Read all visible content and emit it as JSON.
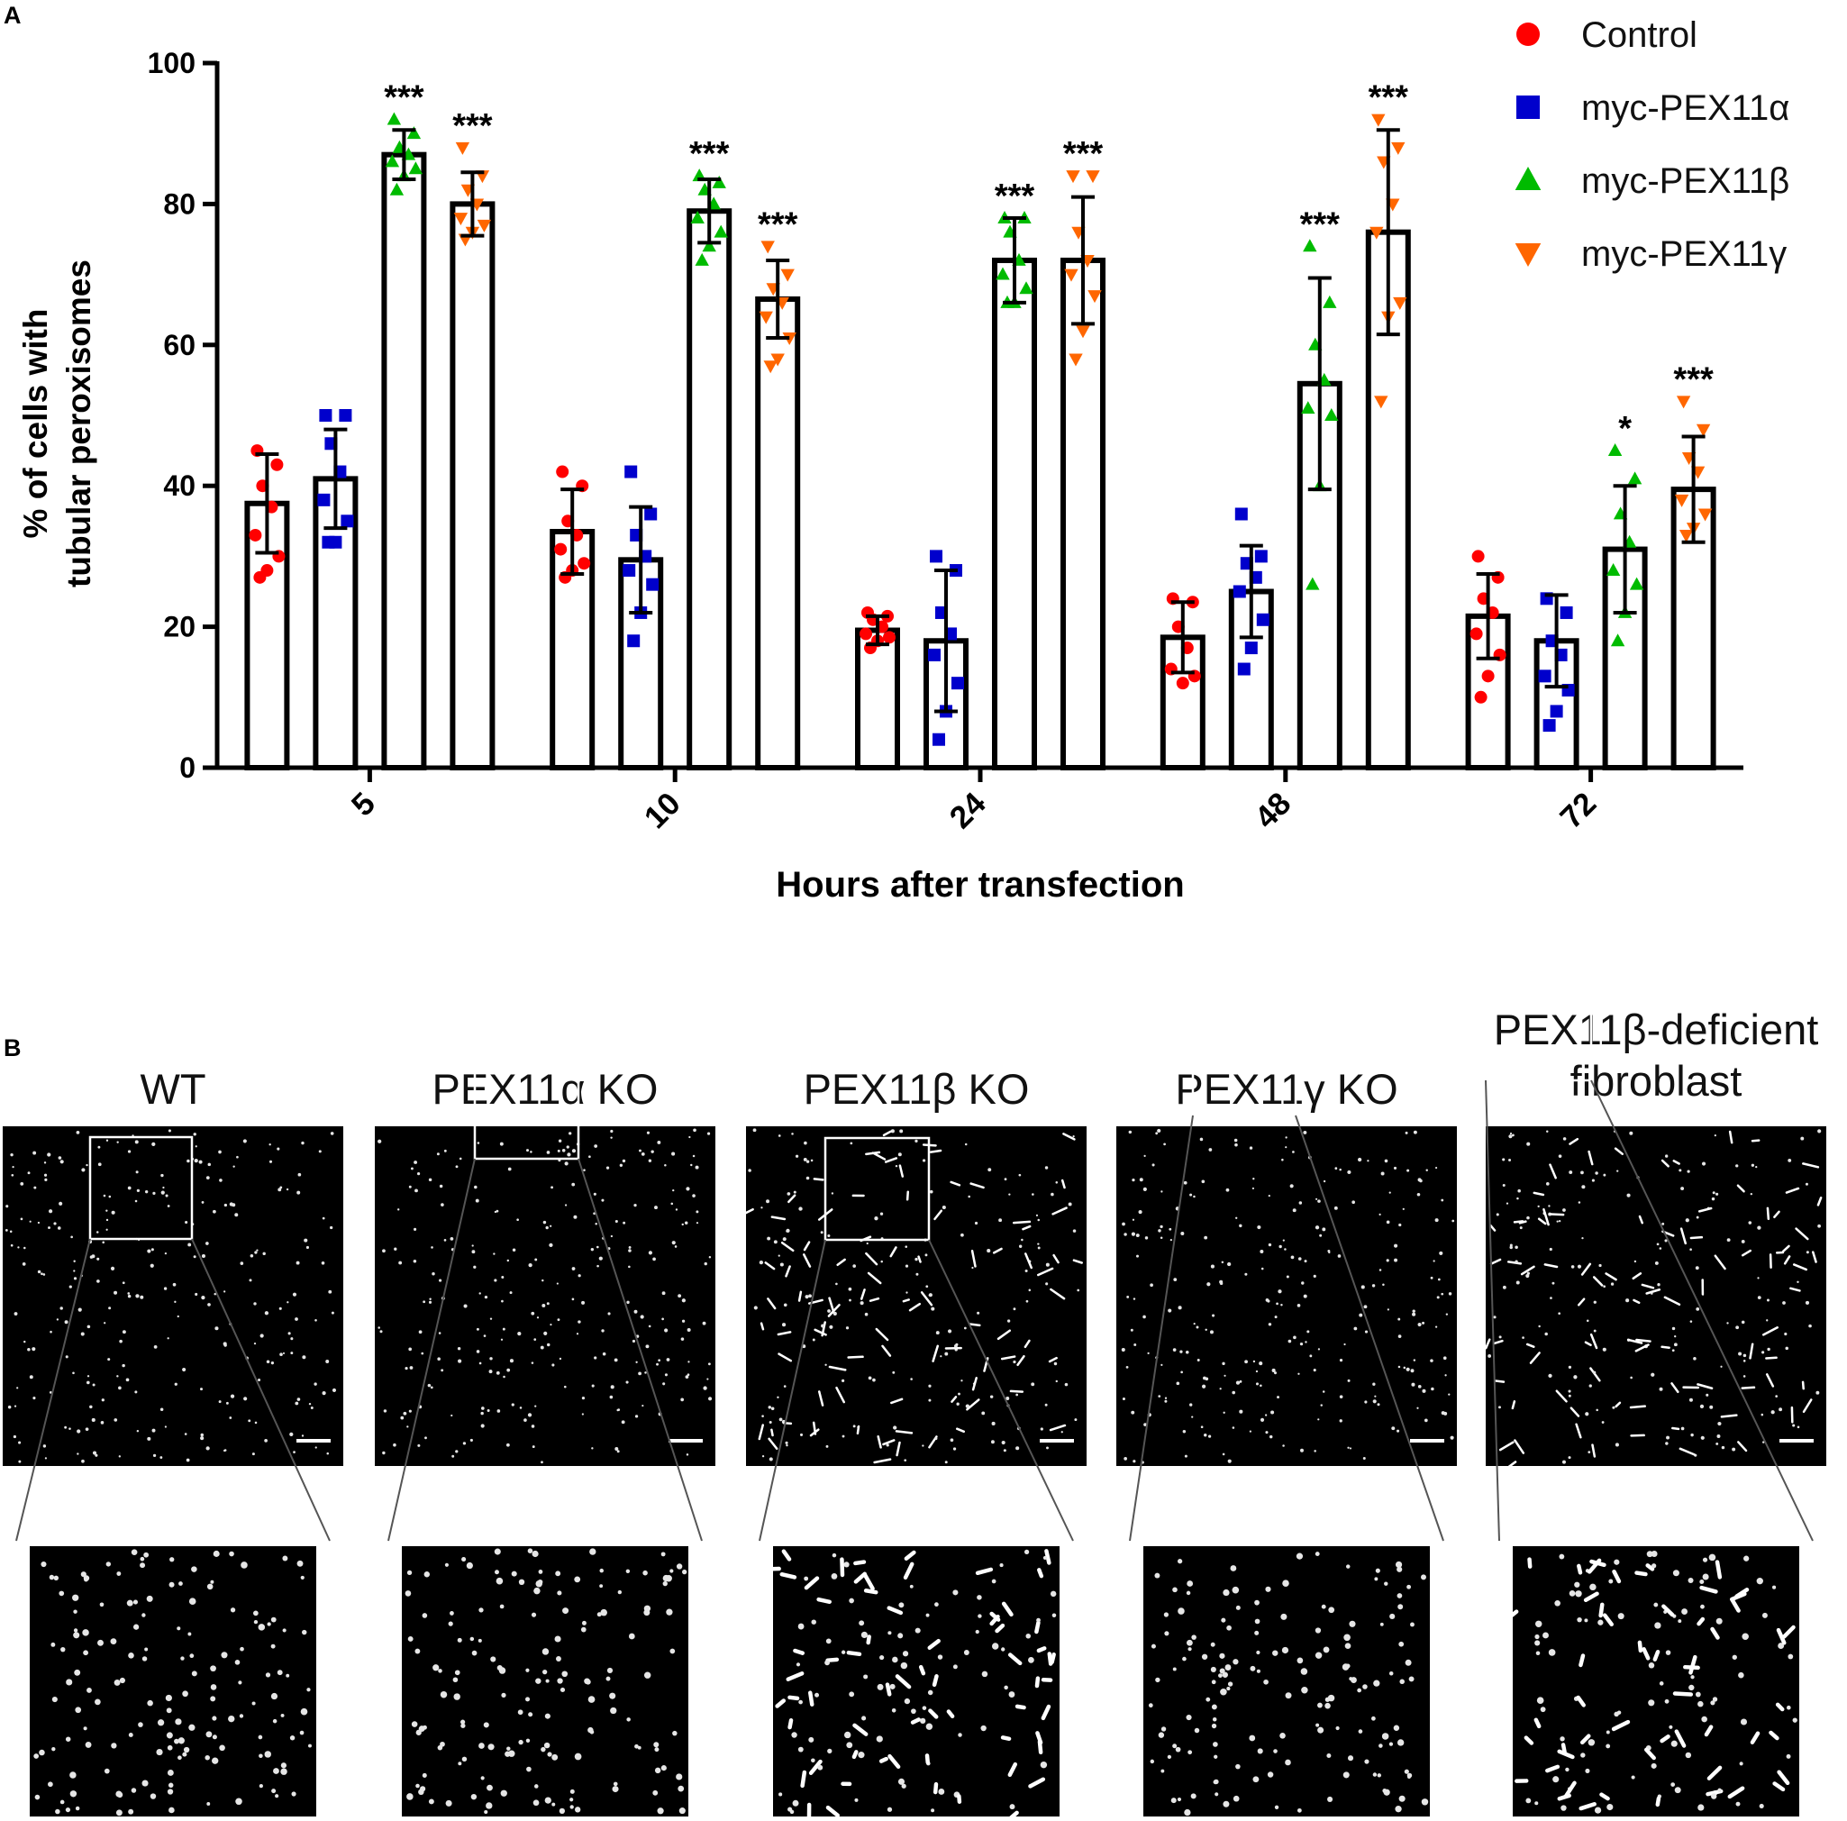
{
  "panel_a_label": "A",
  "panel_b_label": "B",
  "chart_data": {
    "type": "bar",
    "title": "",
    "xlabel": "Hours after transfection",
    "ylabel_lines": [
      "% of cells with",
      "tubular peroxisomes"
    ],
    "ylim": [
      0,
      100
    ],
    "yticks": [
      "0",
      "20",
      "40",
      "60",
      "80",
      "100"
    ],
    "categories": [
      "5",
      "10",
      "24",
      "48",
      "72"
    ],
    "series": [
      {
        "name": "Control",
        "color": "#ff0000",
        "marker": "circle",
        "values": [
          37.5,
          33.5,
          19.5,
          18.5,
          21.5
        ],
        "errors": [
          7,
          6,
          2,
          5,
          6
        ],
        "significance": [
          "",
          "",
          "",
          "",
          ""
        ],
        "points": [
          [
            45,
            43,
            40,
            37,
            33,
            30,
            28,
            27
          ],
          [
            42,
            40,
            35,
            33,
            31,
            29,
            28,
            27
          ],
          [
            22,
            21.5,
            21,
            20,
            19,
            18.5,
            18,
            17
          ],
          [
            24,
            23.5,
            20,
            17,
            14,
            13,
            12
          ],
          [
            30,
            27,
            24,
            22,
            19,
            16,
            13,
            10
          ]
        ]
      },
      {
        "name": "myc-PEX11α",
        "color": "#0000cc",
        "marker": "square",
        "values": [
          41,
          29.5,
          18,
          25,
          18
        ],
        "errors": [
          7,
          7.5,
          10,
          6.5,
          6.5
        ],
        "significance": [
          "",
          "",
          "",
          "",
          ""
        ],
        "points": [
          [
            50,
            50,
            46,
            42,
            38,
            35,
            32,
            32
          ],
          [
            42,
            36,
            33,
            30,
            28,
            26,
            22,
            18
          ],
          [
            30,
            28,
            22,
            19,
            16,
            12,
            8,
            4
          ],
          [
            36,
            30,
            29,
            27,
            25,
            21,
            17,
            14
          ],
          [
            24,
            22,
            18,
            16,
            13,
            11,
            8,
            6
          ]
        ]
      },
      {
        "name": "myc-PEX11β",
        "color": "#00bb00",
        "marker": "triangle",
        "values": [
          87,
          79,
          72,
          54.5,
          31
        ],
        "errors": [
          3.5,
          4.5,
          6,
          15,
          9
        ],
        "significance": [
          "***",
          "***",
          "***",
          "***",
          "*"
        ],
        "points": [
          [
            92,
            90,
            88,
            87,
            86,
            85,
            84,
            82
          ],
          [
            84,
            83,
            82,
            80,
            78,
            76,
            74,
            72
          ],
          [
            78,
            78,
            76,
            72,
            70,
            68,
            66,
            66
          ],
          [
            74,
            66,
            60,
            55,
            51,
            50,
            40,
            26
          ],
          [
            45,
            41,
            36,
            32,
            28,
            26,
            22,
            18
          ]
        ]
      },
      {
        "name": "myc-PEX11γ",
        "color": "#ff6600",
        "marker": "triangle-down",
        "values": [
          80,
          66.5,
          72,
          76,
          39.5
        ],
        "errors": [
          4.5,
          5.5,
          9,
          14.5,
          7.5
        ],
        "significance": [
          "***",
          "***",
          "***",
          "***",
          "***"
        ],
        "points": [
          [
            88,
            84,
            82,
            80,
            78,
            77,
            76,
            75
          ],
          [
            74,
            70,
            68,
            66,
            64,
            61,
            58,
            57
          ],
          [
            84,
            84,
            76,
            72,
            70,
            67,
            62,
            58
          ],
          [
            92,
            88,
            86,
            80,
            76,
            66,
            64,
            52
          ],
          [
            52,
            48,
            44,
            42,
            38,
            36,
            34,
            33
          ]
        ]
      }
    ],
    "legend_position": "top-right"
  },
  "panel_b": {
    "panels": [
      {
        "title_lines": [
          "WT"
        ]
      },
      {
        "title_lines": [
          "PEX11α KO"
        ]
      },
      {
        "title_lines": [
          "PEX11β KO"
        ]
      },
      {
        "title_lines": [
          "PEX11γ KO"
        ]
      },
      {
        "title_lines": [
          "PEX11β-deficient",
          "fibroblast"
        ]
      }
    ]
  }
}
